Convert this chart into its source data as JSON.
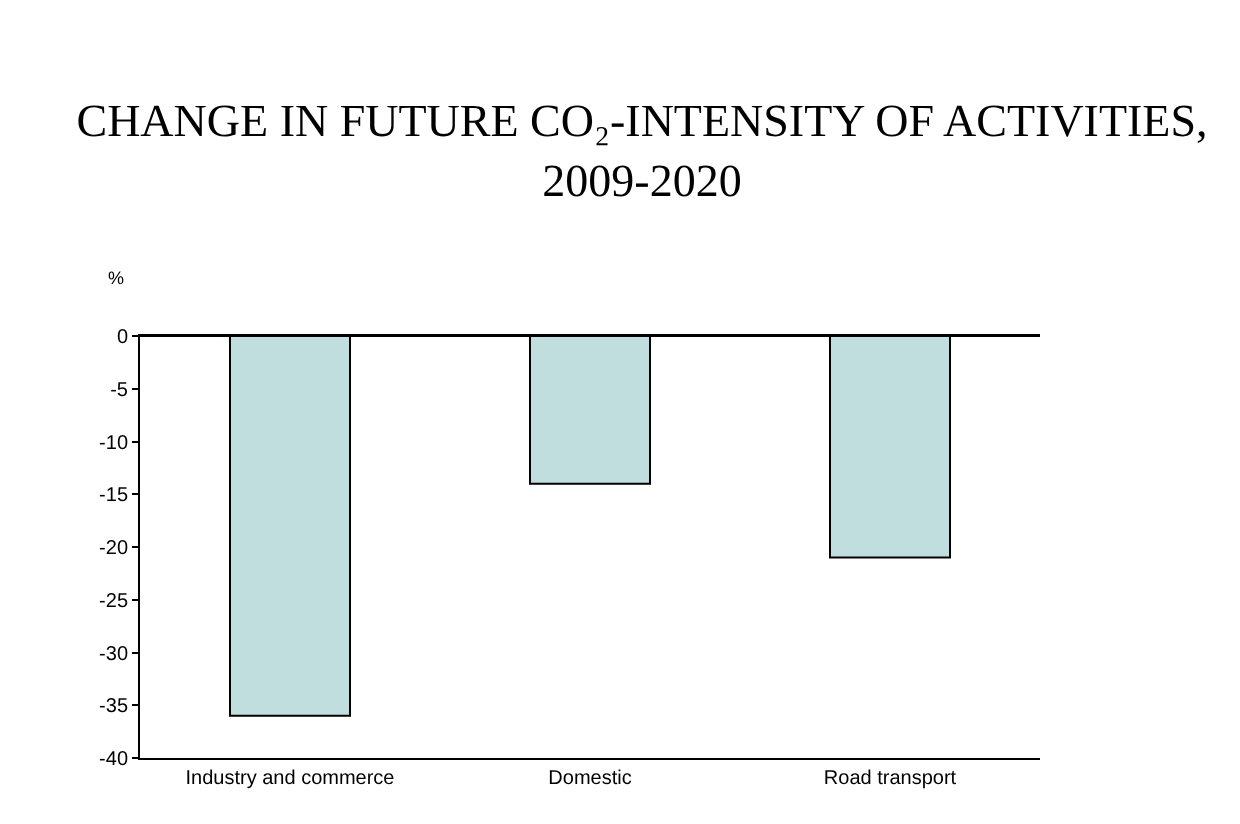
{
  "chart_data": {
    "type": "bar",
    "title": "CHANGE IN FUTURE CO₂-INTENSITY OF ACTIVITIES, 2009-2020",
    "ylabel": "%",
    "categories": [
      "Industry and commerce",
      "Domestic",
      "Road transport"
    ],
    "values": [
      -36,
      -14,
      -21
    ],
    "color": "#c0dede",
    "ylim": [
      -40,
      0
    ],
    "yticks": [
      -40,
      -35,
      -30,
      -25,
      -20,
      -15,
      -10,
      -5,
      0
    ]
  }
}
